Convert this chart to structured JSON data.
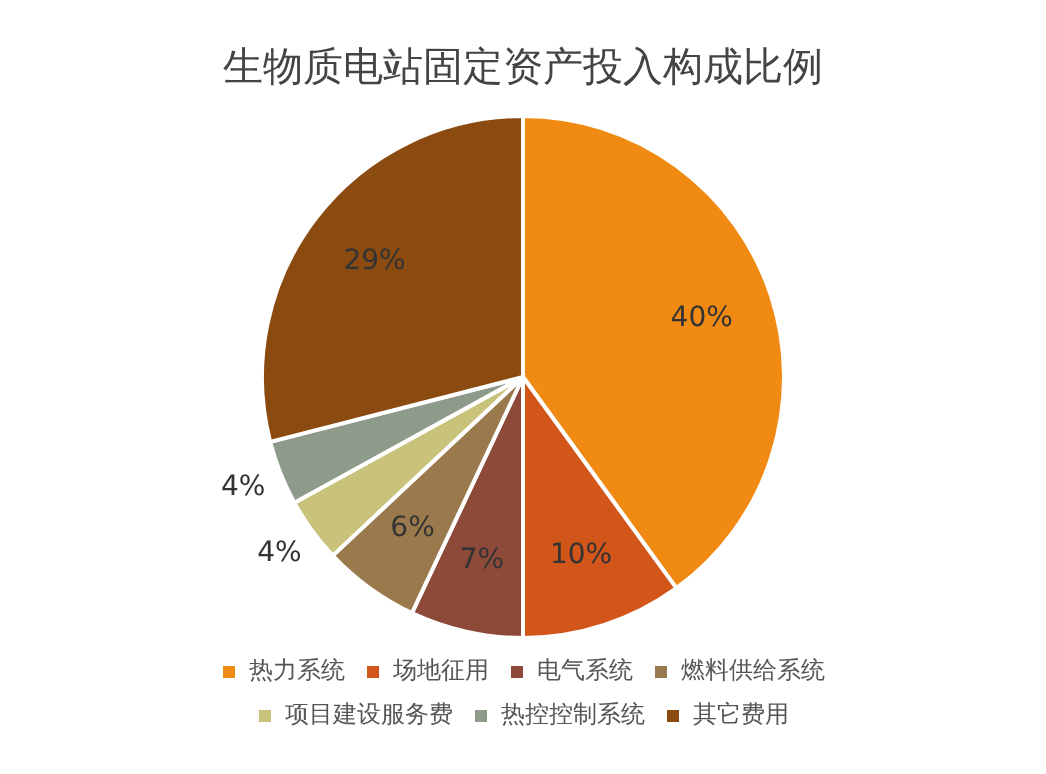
{
  "chart_data": {
    "type": "pie",
    "title": "生物质电站固定资产投入构成比例",
    "categories": [
      "热力系统",
      "场地征用",
      "电气系统",
      "燃料供给系统",
      "项目建设服务费",
      "热控控制系统",
      "其它费用"
    ],
    "values": [
      40,
      10,
      7,
      6,
      4,
      4,
      29
    ],
    "colors": [
      "#f08a12",
      "#d2561a",
      "#8e4a38",
      "#9a7a4c",
      "#c8c27a",
      "#8e9a8a",
      "#8a4a10"
    ],
    "value_labels": [
      "40%",
      "10%",
      "7%",
      "6%",
      "4%",
      "4%",
      "29%"
    ],
    "legend": "bottom"
  }
}
